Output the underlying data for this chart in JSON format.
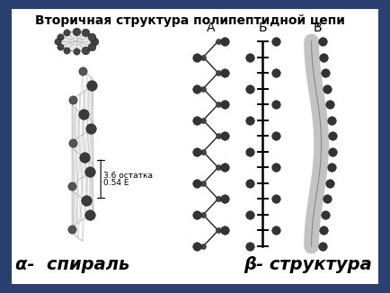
{
  "title": "Вторичная структура полипептидной цепи",
  "label_alpha": "α-  спираль",
  "label_beta": "β- структура",
  "label_A": "А",
  "label_B": "Б",
  "label_V": "В",
  "annotation_line1": "3.6 остатка",
  "annotation_line2": "0.54 Е",
  "bg_color": "#ffffff",
  "outer_bg": "#2a4070",
  "title_fontsize": 10,
  "label_fontsize": 14,
  "small_fontsize": 6.5,
  "abc_fontsize": 10
}
